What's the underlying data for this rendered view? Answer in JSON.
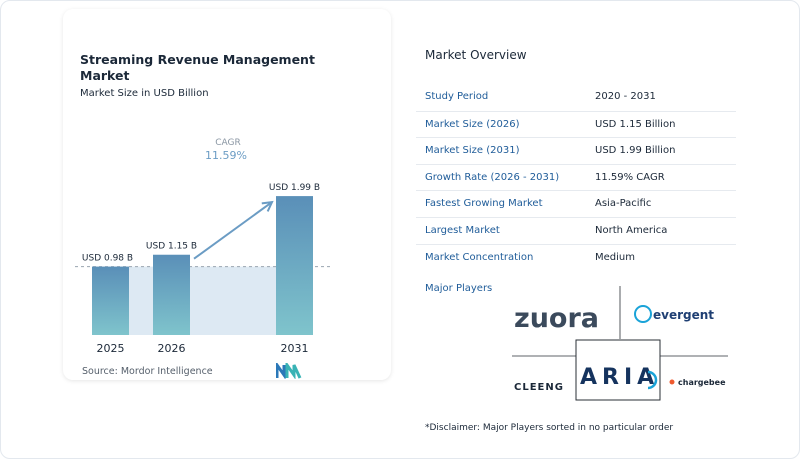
{
  "title": "Streaming Revenue Management Market",
  "subtitle": "Market Size in USD Billion",
  "source": "Source: Mordor Intelligence",
  "chart_data": {
    "type": "bar",
    "categories": [
      "2025",
      "2026",
      "2031"
    ],
    "values": [
      0.98,
      1.15,
      1.99
    ],
    "data_labels": [
      "USD 0.98 B",
      "USD 1.15 B",
      "USD 1.99 B"
    ],
    "cagr_label": "CAGR",
    "cagr_value": "11.59%",
    "ylim": [
      0,
      2.0
    ],
    "colors": {
      "bar_top": "#5a8fb8",
      "bar_bottom": "#7fc4cc",
      "band": "#dde9f3",
      "arrow": "#6b9cc4",
      "cagr_text": "#6b9cc4"
    }
  },
  "overview": {
    "title": "Market Overview",
    "rows": [
      {
        "key": "Study Period",
        "value": "2020 - 2031"
      },
      {
        "key": "Market Size (2026)",
        "value": "USD 1.15 Billion"
      },
      {
        "key": "Market Size (2031)",
        "value": "USD 1.99 Billion"
      },
      {
        "key": "Growth Rate (2026 - 2031)",
        "value": "11.59% CAGR"
      },
      {
        "key": "Fastest Growing Market",
        "value": "Asia-Pacific"
      },
      {
        "key": "Largest Market",
        "value": "North America"
      },
      {
        "key": "Market Concentration",
        "value": "Medium"
      }
    ],
    "players_title": "Major Players",
    "players": [
      "zuora",
      "evergent",
      "CLEENG",
      "ARIA",
      "chargebee"
    ]
  },
  "disclaimer": "*Disclaimer: Major Players sorted in no particular order"
}
